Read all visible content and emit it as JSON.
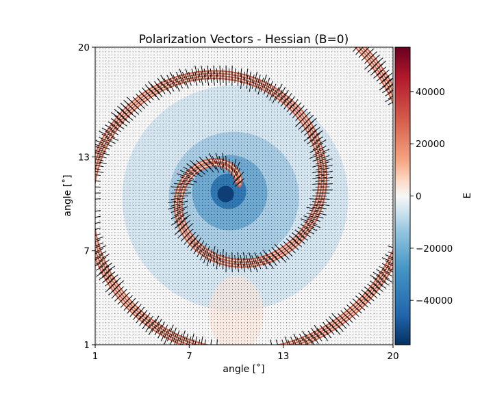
{
  "chart_data": {
    "type": "heatmap",
    "title": "Polarization Vectors - Hessian (B=0)",
    "xlabel": "angle [$^\\circ$]",
    "ylabel": "angle [$^\\circ$]",
    "xlim": [
      1,
      20
    ],
    "ylim": [
      1,
      20
    ],
    "xticks": [
      "1",
      "7",
      "13",
      "20"
    ],
    "yticks": [
      "1",
      "7",
      "13",
      "20"
    ],
    "colorbar": {
      "label": "E",
      "range": [
        -57000,
        57000
      ],
      "ticks": [
        "−40000",
        "−20000",
        "0",
        "20000",
        "40000"
      ],
      "tick_values": [
        -40000,
        -20000,
        0,
        20000,
        40000
      ],
      "colormap": "RdBu_r"
    },
    "field": {
      "description_type": "spiral",
      "spiral_center": [
        9.5,
        10.8
      ],
      "arms": 2,
      "negative_core_min": -52000,
      "positive_ridge_max": 45000,
      "background_level": -8000,
      "faint_positive_blob": [
        10,
        3
      ],
      "vector_overlay": "quiver"
    }
  },
  "colors": {
    "negative_dark": "#053061",
    "negative_mid": "#4393c3",
    "neutral": "#f7f7f7",
    "positive_mid": "#f4a582",
    "positive_dark": "#67001f"
  }
}
